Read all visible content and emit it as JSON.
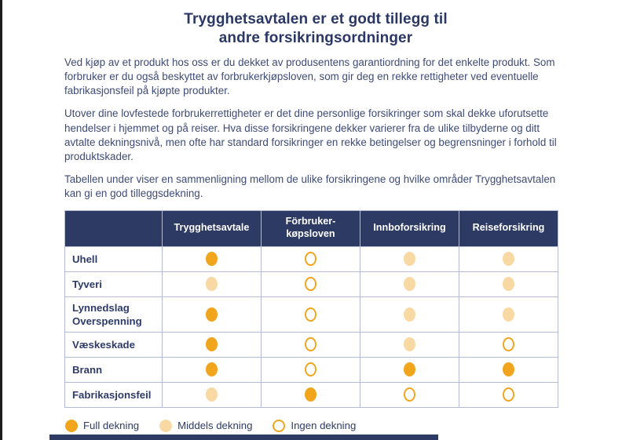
{
  "header": {
    "title_line1": "Trygghetsavtalen er et godt tillegg til",
    "title_line2": "andre forsikringsordninger"
  },
  "body": {
    "paragraphs": [
      "Ved kjøp av et produkt hos oss er du dekket av produsentens garantiordning for det enkelte produkt. Som forbruker er du også beskyttet av forbrukerkjøpsloven, som gir deg en rekke rettigheter ved eventuelle fabrikasjonsfeil på kjøpte produkter.",
      "Utover dine lovfestede forbrukerrettigheter er det dine personlige forsikringer som skal dekke uforutsette hendelser i hjemmet og på reiser. Hva disse forsikringene dekker varierer fra de ulike tilbyderne og ditt avtalte dekningsnivå, men ofte har standard forsikringer en rekke betingelser og begrensninger i forhold til produktskader.",
      "Tabellen under viser en sammenligning mellom de ulike forsikringene og hvilke områder Trygghetsavtalen kan gi en god tilleggsdekning."
    ]
  },
  "table": {
    "columns": [
      "Trygghetsavtale",
      "Förbruker-\nkøpsloven",
      "Innboforsikring",
      "Reiseforsikring"
    ],
    "rows": [
      {
        "label": "Uhell",
        "cells": [
          "full",
          "none",
          "medium",
          "medium"
        ]
      },
      {
        "label": "Tyveri",
        "cells": [
          "medium",
          "none",
          "medium",
          "medium"
        ]
      },
      {
        "label": "Lynnedslag\nOverspenning",
        "cells": [
          "full",
          "none",
          "medium",
          "medium"
        ]
      },
      {
        "label": "Væskeskade",
        "cells": [
          "full",
          "none",
          "medium",
          "none"
        ]
      },
      {
        "label": "Brann",
        "cells": [
          "full",
          "none",
          "full",
          "full"
        ]
      },
      {
        "label": "Fabrikasjonsfeil",
        "cells": [
          "medium",
          "full",
          "none",
          "none"
        ]
      }
    ]
  },
  "legend": {
    "items": [
      {
        "type": "full",
        "label": "Full dekning"
      },
      {
        "type": "medium",
        "label": "Middels dekning"
      },
      {
        "type": "none",
        "label": "Ingen dekning"
      }
    ]
  },
  "colors": {
    "navy": "#2D3A64",
    "title-navy": "#2B3866",
    "body-navy": "#3E4B78",
    "label-navy": "#2E3B69",
    "orange": "#F0A51D",
    "peach": "#F8D9A3",
    "grid": "#B4BBD6",
    "edge": "#1C1C1C"
  }
}
